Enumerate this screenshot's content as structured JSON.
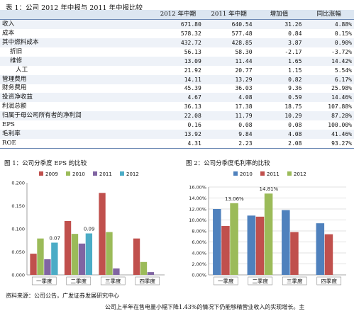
{
  "table": {
    "caption": "表 1：公司 2012 年中报与 2011 年中报比较",
    "headers": [
      "",
      "2012 年中期",
      "2011 年中期",
      "增加值",
      "同比涨幅"
    ],
    "rows": [
      {
        "label": "收入",
        "v": [
          "671.80",
          "640.54",
          "31.26",
          "4.88%"
        ],
        "style": "alt"
      },
      {
        "label": "成本",
        "v": [
          "578.32",
          "577.48",
          "0.84",
          "0.15%"
        ],
        "style": ""
      },
      {
        "label": "其中燃料成本",
        "v": [
          "432.72",
          "428.85",
          "3.87",
          "0.90%"
        ],
        "style": "alt"
      },
      {
        "label": "折旧",
        "v": [
          "56.13",
          "58.30",
          "-2.17",
          "-3.72%"
        ],
        "style": "indent"
      },
      {
        "label": "维修",
        "v": [
          "13.09",
          "11.44",
          "1.65",
          "14.42%"
        ],
        "style": "alt indent"
      },
      {
        "label": "人工",
        "v": [
          "21.92",
          "20.77",
          "1.15",
          "5.54%"
        ],
        "style": "indent2"
      },
      {
        "label": "管理费用",
        "v": [
          "14.11",
          "13.29",
          "0.82",
          "6.17%"
        ],
        "style": "alt"
      },
      {
        "label": "财务费用",
        "v": [
          "45.39",
          "36.03",
          "9.36",
          "25.98%"
        ],
        "style": ""
      },
      {
        "label": "投资净收益",
        "v": [
          "4.67",
          "4.08",
          "0.59",
          "14.46%"
        ],
        "style": "alt"
      },
      {
        "label": "利润总额",
        "v": [
          "36.13",
          "17.38",
          "18.75",
          "107.88%"
        ],
        "style": ""
      },
      {
        "label": "归属于母公司所有者的净利润",
        "v": [
          "22.08",
          "11.79",
          "10.29",
          "87.28%"
        ],
        "style": "alt"
      },
      {
        "label": "EPS",
        "v": [
          "0.16",
          "0.08",
          "0.08",
          "100.00%"
        ],
        "style": ""
      },
      {
        "label": "毛利率",
        "v": [
          "13.92",
          "9.84",
          "4.08",
          "41.46%"
        ],
        "style": "alt"
      },
      {
        "label": "ROE",
        "v": [
          "4.31",
          "2.23",
          "2.08",
          "93.27%"
        ],
        "style": ""
      }
    ]
  },
  "figures": {
    "left_caption": "图 1：公司分季度 EPS 的比较",
    "right_caption": "图 2：公司分季度毛利率的比较"
  },
  "source_note": "资料来源：公司公告，广发证券发展研究中心",
  "trailing_text": "公司上半年在售电量小幅下降1.43%的情况下仍能够精营业收入的实现增长。主",
  "colors": {
    "2009": "#c0504d",
    "2010": "#9bbb59",
    "2011": "#8064a2",
    "2012": "#4bacc6",
    "r2010": "#4f81bd",
    "r2011": "#c0504d",
    "r2012": "#9bbb59"
  },
  "chart_data": [
    {
      "type": "bar",
      "title": "",
      "categories": [
        "一季度",
        "二季度",
        "三季度",
        "四季度"
      ],
      "ylim": [
        0,
        0.2
      ],
      "yticks": [
        "0.000",
        "0.050",
        "0.100",
        "0.150",
        "0.200"
      ],
      "legend": "top",
      "series": [
        {
          "name": "2009",
          "values": [
            0.046,
            0.117,
            0.178,
            0.079
          ]
        },
        {
          "name": "2010",
          "values": [
            0.079,
            0.089,
            0.093,
            0.028
          ]
        },
        {
          "name": "2011",
          "values": [
            0.034,
            0.068,
            0.014,
            0.006
          ]
        },
        {
          "name": "2012",
          "values": [
            0.07,
            0.09,
            null,
            null
          ]
        }
      ],
      "annotations": [
        {
          "series": "2012",
          "category": "一季度",
          "text": "0.07"
        },
        {
          "series": "2012",
          "category": "二季度",
          "text": "0.09"
        }
      ]
    },
    {
      "type": "bar",
      "title": "",
      "categories": [
        "一季度",
        "二季度",
        "三季度",
        "四季度"
      ],
      "ylim": [
        0,
        0.16
      ],
      "yticks": [
        "0.00%",
        "2.00%",
        "4.00%",
        "6.00%",
        "8.00%",
        "10.00%",
        "12.00%",
        "14.00%",
        "16.00%"
      ],
      "legend": "top",
      "series": [
        {
          "name": "2010",
          "values": [
            0.12,
            0.108,
            0.118,
            0.094
          ]
        },
        {
          "name": "2011",
          "values": [
            0.089,
            0.106,
            0.078,
            0.074
          ]
        },
        {
          "name": "2012",
          "values": [
            0.1306,
            0.1481,
            null,
            null
          ]
        }
      ],
      "annotations": [
        {
          "series": "2012",
          "category": "一季度",
          "text": "13.06%"
        },
        {
          "series": "2012",
          "category": "二季度",
          "text": "14.81%"
        }
      ]
    }
  ]
}
